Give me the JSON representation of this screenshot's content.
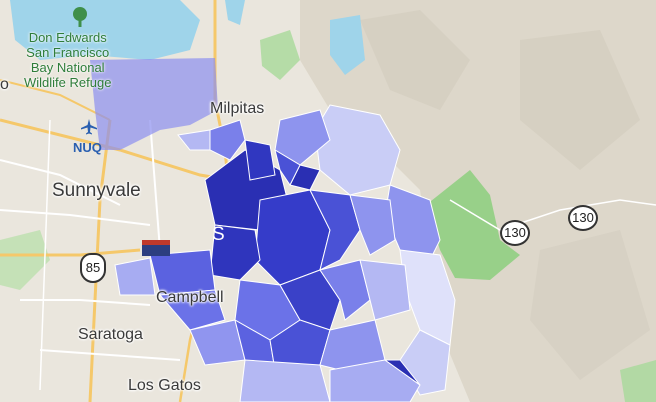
{
  "map": {
    "colors": {
      "land": "#eae6dd",
      "hills": "#dcd6c9",
      "water": "#9fd4ea",
      "park": "#8ccf7e",
      "road_major": "#f5c86a",
      "road_minor": "#ffffff",
      "choropleth_dark": "#2a2fb3",
      "choropleth_mid": "#6b72e8",
      "choropleth_light": "#c9cdf6"
    },
    "labels": {
      "refuge": "Don Edwards San Francisco Bay National Wildlife Refuge",
      "refuge_lines": [
        "Don Edwards",
        "San Francisco",
        "Bay National",
        "Wildlife Refuge"
      ],
      "milpitas": "Milpitas",
      "sunnyvale": "Sunnyvale",
      "campbell": "Campbell",
      "saratoga": "Saratoga",
      "los_gatos": "Los Gatos",
      "san_jose_partial": "S",
      "edge_partial": "o",
      "airport": "NUQ"
    },
    "route_shields": {
      "i85": "85",
      "r130_a": "130",
      "r130_b": "130"
    },
    "icons": [
      "tree-icon",
      "airplane-icon",
      "interstate-shield-icon"
    ]
  }
}
